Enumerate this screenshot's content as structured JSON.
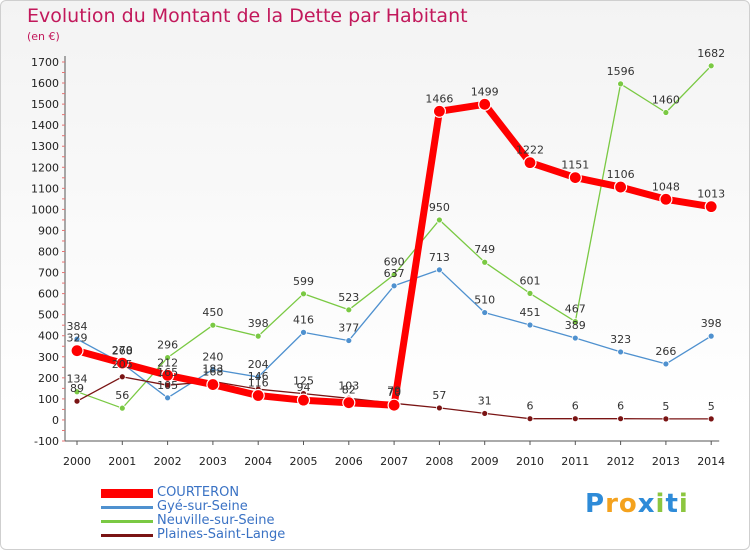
{
  "title": "Evolution du Montant de la Dette par Habitant",
  "unit": "(en €)",
  "brand": [
    "P",
    "r",
    "o",
    "x",
    "i",
    "t",
    "i"
  ],
  "chart_data": {
    "type": "line",
    "title": "Evolution du Montant de la Dette par Habitant",
    "ylabel": "(en €)",
    "x": [
      "2000",
      "2001",
      "2002",
      "2003",
      "2004",
      "2005",
      "2006",
      "2007",
      "2008",
      "2009",
      "2010",
      "2011",
      "2012",
      "2013",
      "2014"
    ],
    "ylim": [
      -100,
      1700
    ],
    "yticks": [
      -100,
      0,
      100,
      200,
      300,
      400,
      500,
      600,
      700,
      800,
      900,
      1000,
      1100,
      1200,
      1300,
      1400,
      1500,
      1600,
      1700
    ],
    "grid": false,
    "legend_position": "bottom-left",
    "series": [
      {
        "name": "COURTERON",
        "color": "#ff0000",
        "values": [
          329,
          270,
          212,
          168,
          116,
          94,
          82,
          70,
          1466,
          1499,
          1222,
          1151,
          1106,
          1048,
          1013
        ]
      },
      {
        "name": "Gyé-sur-Seine",
        "color": "#4f91cf",
        "values": [
          384,
          268,
          105,
          240,
          204,
          416,
          377,
          637,
          713,
          510,
          451,
          389,
          323,
          266,
          398
        ]
      },
      {
        "name": "Neuville-sur-Seine",
        "color": "#7ac943",
        "values": [
          134,
          56,
          296,
          450,
          398,
          599,
          523,
          690,
          950,
          749,
          601,
          467,
          1596,
          1460,
          1682
        ]
      },
      {
        "name": "Plaines-Saint-Lange",
        "color": "#7a1414",
        "values": [
          89,
          205,
          165,
          183,
          146,
          125,
          103,
          79,
          57,
          31,
          6,
          6,
          6,
          5,
          5
        ]
      }
    ]
  }
}
